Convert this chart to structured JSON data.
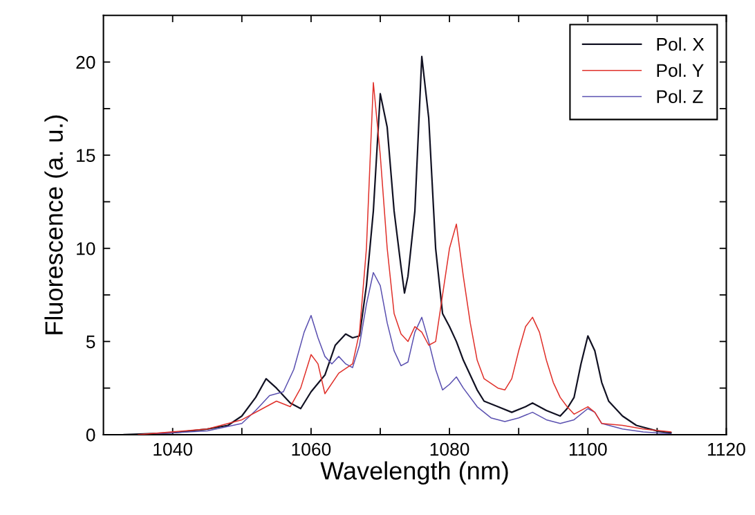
{
  "chart_data": {
    "type": "line",
    "xlabel": "Wavelength (nm)",
    "ylabel": "Fluorescence (a. u.)",
    "xlim": [
      1030,
      1120
    ],
    "ylim": [
      0,
      22.5
    ],
    "xticks": [
      1040,
      {
        "value": 1050,
        "label": null
      },
      1060,
      {
        "value": 1070,
        "label": null
      },
      1080,
      {
        "value": 1090,
        "label": null
      },
      1100,
      {
        "value": 1110,
        "label": null
      },
      1120
    ],
    "yticks": [
      0,
      {
        "value": 2.5,
        "label": null
      },
      5,
      {
        "value": 7.5,
        "label": null
      },
      10,
      {
        "value": 12.5,
        "label": null
      },
      15,
      {
        "value": 17.5,
        "label": null
      },
      20
    ],
    "grid": false,
    "legend": "top right",
    "marker": "none",
    "line_style": "solid",
    "series": [
      {
        "name": "Pol. X",
        "color": "#111122",
        "x": [
          1033,
          1040,
          1045,
          1048,
          1050,
          1052,
          1053.5,
          1055,
          1057,
          1058.5,
          1060,
          1062,
          1063.5,
          1065,
          1066,
          1067,
          1068,
          1069,
          1070,
          1071,
          1072,
          1073,
          1073.5,
          1074,
          1075,
          1076,
          1077,
          1078,
          1079,
          1080,
          1081,
          1082,
          1083,
          1084,
          1085,
          1087,
          1089,
          1091,
          1092,
          1094,
          1096,
          1097,
          1098,
          1099,
          1100,
          1101,
          1102,
          1103,
          1105,
          1107,
          1110,
          1112
        ],
        "values": [
          0,
          0.1,
          0.3,
          0.5,
          1.0,
          2.0,
          3.0,
          2.5,
          1.7,
          1.4,
          2.3,
          3.2,
          4.8,
          5.4,
          5.2,
          5.3,
          8,
          12,
          18.3,
          16.5,
          12,
          9,
          7.6,
          8.5,
          12,
          20.3,
          17,
          10,
          6.5,
          5.8,
          5,
          4,
          3.2,
          2.4,
          1.8,
          1.5,
          1.2,
          1.5,
          1.7,
          1.3,
          1.0,
          1.4,
          2.0,
          3.8,
          5.3,
          4.5,
          2.8,
          1.8,
          1.0,
          0.5,
          0.2,
          0.1
        ]
      },
      {
        "name": "Pol. Y",
        "color": "#e0302a",
        "x": [
          1035,
          1045,
          1050,
          1053,
          1055,
          1057,
          1058.5,
          1060,
          1061,
          1062,
          1064,
          1066,
          1067,
          1068,
          1069,
          1070,
          1071,
          1072,
          1073,
          1074,
          1075,
          1076,
          1077,
          1078,
          1079,
          1080,
          1081,
          1082,
          1083,
          1084,
          1085,
          1087,
          1088,
          1089,
          1090,
          1091,
          1092,
          1093,
          1094,
          1095,
          1096,
          1097,
          1098,
          1100,
          1101,
          1102,
          1105,
          1108,
          1112
        ],
        "values": [
          0,
          0.3,
          0.8,
          1.4,
          1.8,
          1.5,
          2.5,
          4.3,
          3.8,
          2.2,
          3.3,
          3.8,
          5.5,
          10,
          18.9,
          15,
          10,
          6.5,
          5.4,
          5.0,
          5.8,
          5.5,
          4.8,
          5.0,
          7.5,
          10,
          11.3,
          8.5,
          6,
          4,
          3,
          2.5,
          2.4,
          3,
          4.5,
          5.8,
          6.3,
          5.5,
          4,
          2.8,
          2.0,
          1.5,
          1.1,
          1.5,
          1.2,
          0.6,
          0.5,
          0.3,
          0.15
        ]
      },
      {
        "name": "Pol. Z",
        "color": "#5a50b0",
        "x": [
          1035,
          1045,
          1050,
          1052,
          1054,
          1056,
          1057.5,
          1059,
          1060,
          1061,
          1062,
          1063,
          1064,
          1065,
          1066,
          1067,
          1068,
          1069,
          1070,
          1071,
          1072,
          1073,
          1074,
          1075,
          1076,
          1077,
          1078,
          1079,
          1080,
          1081,
          1082,
          1084,
          1086,
          1088,
          1090,
          1092,
          1094,
          1096,
          1098,
          1100,
          1101,
          1102,
          1105,
          1108,
          1112
        ],
        "values": [
          0,
          0.2,
          0.6,
          1.3,
          2.1,
          2.3,
          3.5,
          5.5,
          6.4,
          5.2,
          4.2,
          3.8,
          4.2,
          3.8,
          3.6,
          4.8,
          7.0,
          8.7,
          8.0,
          6,
          4.5,
          3.7,
          3.9,
          5.5,
          6.3,
          5,
          3.5,
          2.4,
          2.7,
          3.1,
          2.5,
          1.5,
          0.9,
          0.7,
          0.9,
          1.2,
          0.8,
          0.6,
          0.8,
          1.4,
          1.2,
          0.6,
          0.3,
          0.15,
          0.05
        ]
      }
    ]
  }
}
